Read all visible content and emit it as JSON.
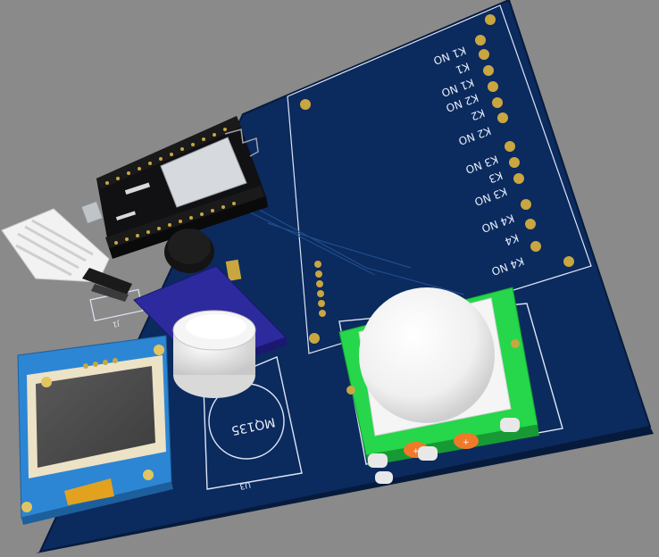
{
  "pcb": {
    "background_color": "#8a8a8a",
    "board_color": "#0b2a5e",
    "silkscreen_color": "#e8eef8",
    "pad_color": "#c9a640"
  },
  "relay_terminals": {
    "labels": [
      "K1 NO",
      "K1",
      "K1 NO",
      "K2 NO",
      "K2",
      "K2 NO",
      "K3 NO",
      "K3",
      "K3 NO",
      "K4 NO",
      "K4",
      "K4 NO"
    ]
  },
  "gas_sensor": {
    "silk_label": "MQ135",
    "ref_designator": "U3"
  },
  "header": {
    "ref_designator": "J1"
  },
  "modules": {
    "nodemcu": "nodemcu-esp8266",
    "dht": "dht-sensor",
    "oled": "oled-display",
    "pir": "pir-sensor",
    "buzzer": "buzzer",
    "mq135_module": "mq135-module"
  }
}
